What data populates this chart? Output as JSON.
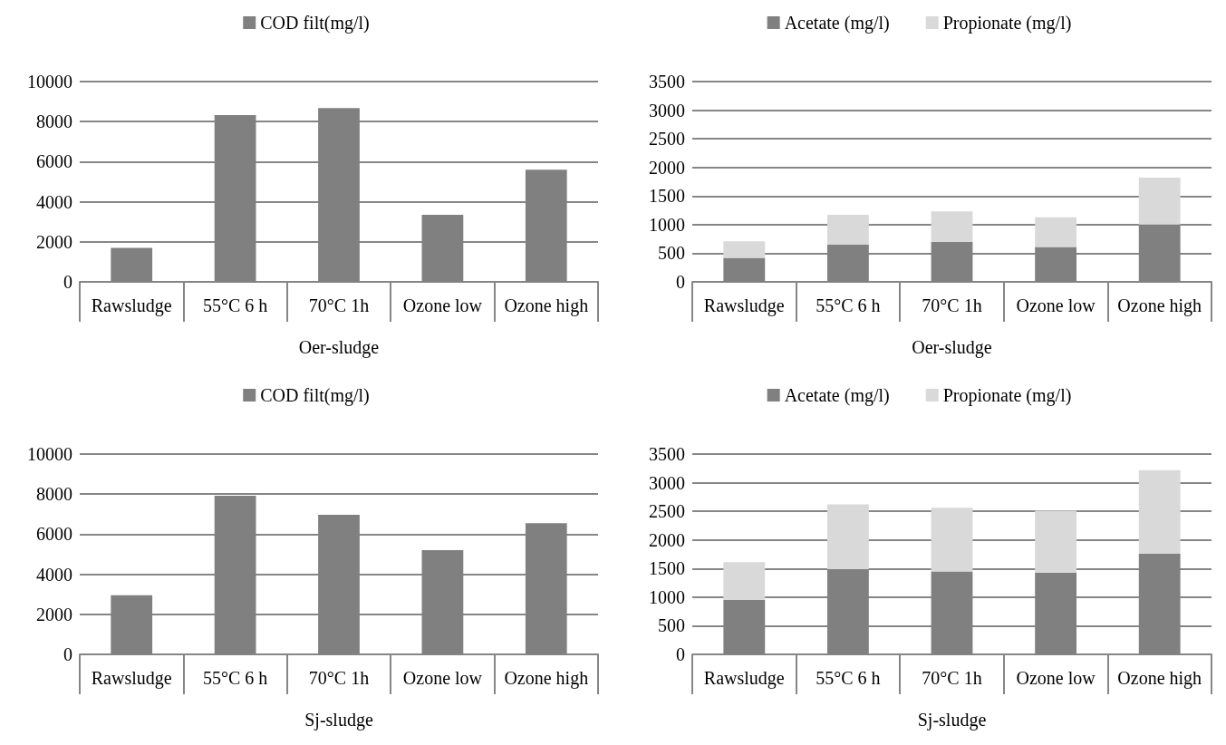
{
  "chart_data": [
    {
      "type": "bar",
      "categories": [
        "Rawsludge",
        "55°C 6 h",
        "70°C 1h",
        "Ozone low",
        "Ozone high"
      ],
      "xlabel": "Oer-sludge",
      "series": [
        {
          "name": "COD filt(mg/l)",
          "color": "#808080",
          "values": [
            1700,
            8330,
            8680,
            3350,
            5600
          ]
        }
      ],
      "ylim": [
        0,
        10000
      ],
      "yticks": [
        0,
        2000,
        4000,
        6000,
        8000,
        10000
      ],
      "grid": "y",
      "legend": "top"
    },
    {
      "type": "bar",
      "categories": [
        "Rawsludge",
        "55°C 6 h",
        "70°C 1h",
        "Ozone low",
        "Ozone high"
      ],
      "xlabel": "Oer-sludge",
      "stacked": true,
      "series": [
        {
          "name": "Acetate (mg/l)",
          "color": "#808080",
          "values": [
            420,
            650,
            700,
            610,
            1000
          ]
        },
        {
          "name": "Propionate (mg/l)",
          "color": "#d9d9d9",
          "values": [
            290,
            520,
            530,
            520,
            820
          ]
        }
      ],
      "ylim": [
        0,
        3500
      ],
      "yticks": [
        0,
        500,
        1000,
        1500,
        2000,
        2500,
        3000,
        3500
      ],
      "grid": "y",
      "legend": "top"
    },
    {
      "type": "bar",
      "categories": [
        "Rawsludge",
        "55°C 6 h",
        "70°C 1h",
        "Ozone low",
        "Ozone high"
      ],
      "xlabel": "Sj-sludge",
      "series": [
        {
          "name": "COD filt(mg/l)",
          "color": "#808080",
          "values": [
            2950,
            7920,
            6970,
            5200,
            6550
          ]
        }
      ],
      "ylim": [
        0,
        10000
      ],
      "yticks": [
        0,
        2000,
        4000,
        6000,
        8000,
        10000
      ],
      "grid": "y",
      "legend": "top"
    },
    {
      "type": "bar",
      "categories": [
        "Rawsludge",
        "55°C 6 h",
        "70°C 1h",
        "Ozone low",
        "Ozone high"
      ],
      "xlabel": "Sj-sludge",
      "stacked": true,
      "series": [
        {
          "name": "Acetate (mg/l)",
          "color": "#808080",
          "values": [
            950,
            1490,
            1450,
            1430,
            1760
          ]
        },
        {
          "name": "Propionate (mg/l)",
          "color": "#d9d9d9",
          "values": [
            660,
            1130,
            1110,
            1080,
            1460
          ]
        }
      ],
      "ylim": [
        0,
        3500
      ],
      "yticks": [
        0,
        500,
        1000,
        1500,
        2000,
        2500,
        3000,
        3500
      ],
      "grid": "y",
      "legend": "top"
    }
  ]
}
